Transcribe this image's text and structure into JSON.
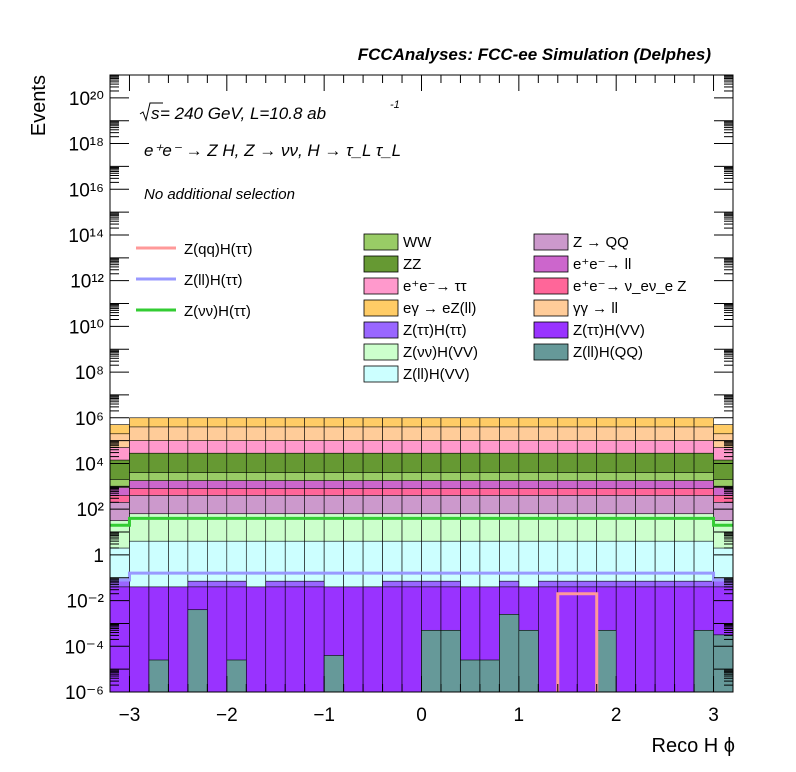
{
  "header": "FCCAnalyses: FCC-ee Simulation (Delphes)",
  "info": {
    "line1_a": "s",
    "line1_b": " = 240 GeV, L=10.8 ab",
    "line1_sup": "-1",
    "line2": "e⁺e⁻ → Z H, Z → νν, H → τ_L τ_L",
    "line3": "No additional selection"
  },
  "chart_data": {
    "type": "stacked-histogram",
    "x_label": "Reco H ϕ",
    "y_label": "Events",
    "y_scale": "log",
    "xlim": [
      -3.2,
      3.2
    ],
    "ylim": [
      1e-06,
      1e+21
    ],
    "x_ticks": [
      "−3",
      "−2",
      "−1",
      "0",
      "1",
      "2",
      "3"
    ],
    "y_ticks": [
      "10⁻⁶",
      "10⁻⁴",
      "10⁻²",
      "1",
      "10²",
      "10⁴",
      "10⁶",
      "10⁸",
      "10¹⁰",
      "10¹²",
      "10¹⁴",
      "10¹⁶",
      "10¹⁸",
      "10²⁰"
    ],
    "n_bins": 32,
    "bin_width": 0.2,
    "stack_order_bottom_to_top": [
      "Z(ll)H(QQ)",
      "Z(ττ)H(VV)",
      "Z(ττ)H(ττ)",
      "Z(ll)H(VV)",
      "Z(νν)H(VV)",
      "Z → QQ",
      "e⁺e⁻→ ν_eν_e Z",
      "e⁺e⁻→ ll",
      "WW",
      "ZZ",
      "e⁺e⁻→ ττ",
      "γγ → ll",
      "eγ → eZ(ll)"
    ],
    "stack_cumulative_top_log10": {
      "Z(ll)H(QQ)": -4.8,
      "Z(ττ)H(VV)": -1.4,
      "Z(ττ)H(ττ)": -1.15,
      "Z(ll)H(VV)": 0.6,
      "Z(νν)H(VV)": 1.8,
      "Z → QQ": 2.6,
      "e⁺e⁻→ ν_eν_e Z": 2.9,
      "e⁺e⁻→ ll": 3.25,
      "WW": 3.6,
      "ZZ": 4.45,
      "e⁺e⁻→ ττ": 5.0,
      "γγ → ll": 5.6,
      "eγ → eZ(ll)": 6.0
    },
    "edge_bins_scale": 0.5,
    "series_styles": [
      {
        "name": "WW",
        "color": "#99cc66"
      },
      {
        "name": "ZZ",
        "color": "#669933"
      },
      {
        "name": "e⁺e⁻→ ττ",
        "color": "#ff99cc"
      },
      {
        "name": "eγ → eZ(ll)",
        "color": "#ffcc66"
      },
      {
        "name": "Z(ττ)H(ττ)",
        "color": "#9966ff"
      },
      {
        "name": "Z(νν)H(VV)",
        "color": "#ccffcc"
      },
      {
        "name": "Z(ll)H(VV)",
        "color": "#ccffff"
      },
      {
        "name": "Z → QQ",
        "color": "#cc99cc"
      },
      {
        "name": "e⁺e⁻→ ll",
        "color": "#cc66cc"
      },
      {
        "name": "e⁺e⁻→ ν_eν_e Z",
        "color": "#ff6699"
      },
      {
        "name": "γγ → ll",
        "color": "#ffcc99"
      },
      {
        "name": "Z(ττ)H(VV)",
        "color": "#9933ff"
      },
      {
        "name": "Z(ll)H(QQ)",
        "color": "#669999"
      }
    ],
    "zllhqq_bins_log10": [
      -6,
      -6,
      -4.6,
      -6,
      -2.4,
      -6,
      -4.6,
      -6,
      -6,
      -6,
      -6,
      -4.4,
      -6,
      -6,
      -6,
      -6,
      -3.3,
      -3.3,
      -4.6,
      -4.6,
      -2.6,
      -3.3,
      -6,
      -6,
      -6,
      -3.3,
      -6,
      -6,
      -6,
      -6,
      -3.3,
      -3.5
    ],
    "zttht_dip_bins_log10": {
      "1": -1.6,
      "2": -2.4,
      "3": -1.5,
      "7": -2.4,
      "11": -2.8,
      "12": -1.5,
      "13": -1.4,
      "18": -1.7,
      "19": -1.8,
      "21": -2.2
    },
    "signal_lines": [
      {
        "name": "Z(qq)H(ττ)",
        "color": "#ff9999",
        "values_log10": {
          "23": -1.7,
          "24": -1.7
        }
      },
      {
        "name": "Z(ll)H(ττ)",
        "color": "#9999ff",
        "level_log10": -0.8
      },
      {
        "name": "Z(νν)H(ττ)",
        "color": "#33cc33",
        "level_log10": 1.6
      }
    ],
    "legend_left": [
      "Z(qq)H(ττ)",
      "Z(ll)H(ττ)",
      "Z(νν)H(ττ)"
    ],
    "legend_col1": [
      "WW",
      "ZZ",
      "e⁺e⁻→ ττ",
      "eγ → eZ(ll)",
      "Z(ττ)H(ττ)",
      "Z(νν)H(VV)",
      "Z(ll)H(VV)"
    ],
    "legend_col2": [
      "Z → QQ",
      "e⁺e⁻→ ll",
      "e⁺e⁻→ ν_eν_e Z",
      "γγ → ll",
      "Z(ττ)H(VV)",
      "Z(ll)H(QQ)"
    ]
  }
}
